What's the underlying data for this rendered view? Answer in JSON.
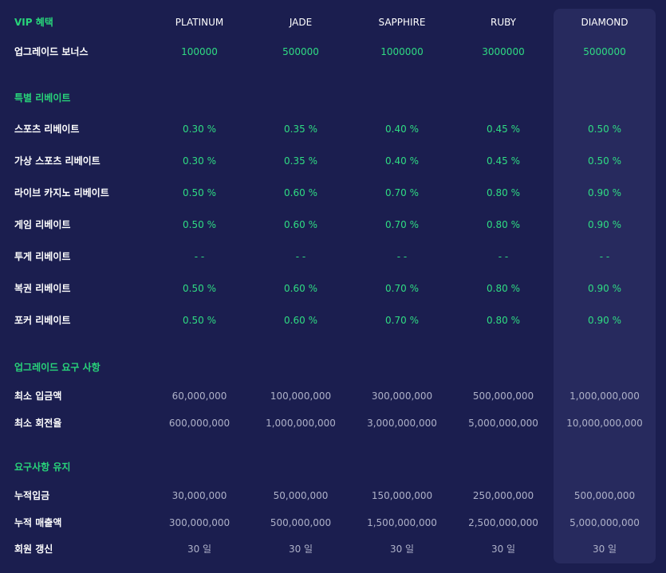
{
  "header": {
    "title": "VIP 혜택",
    "tiers": [
      "PLATINUM",
      "JADE",
      "SAPPHIRE",
      "RUBY",
      "DIAMOND"
    ]
  },
  "upgrade_bonus": {
    "label": "업그레이드 보너스",
    "values": [
      "100000",
      "500000",
      "1000000",
      "3000000",
      "5000000"
    ]
  },
  "special_rebate": {
    "title": "특별 리베이트",
    "rows": [
      {
        "label": "스포츠 리베이트",
        "values": [
          "0.30 %",
          "0.35 %",
          "0.40 %",
          "0.45 %",
          "0.50 %"
        ]
      },
      {
        "label": "가상 스포츠 리베이트",
        "values": [
          "0.30 %",
          "0.35 %",
          "0.40 %",
          "0.45 %",
          "0.50 %"
        ]
      },
      {
        "label": "라이브 카지노 리베이트",
        "values": [
          "0.50 %",
          "0.60 %",
          "0.70 %",
          "0.80 %",
          "0.90 %"
        ]
      },
      {
        "label": "게임 리베이트",
        "values": [
          "0.50 %",
          "0.60 %",
          "0.70 %",
          "0.80 %",
          "0.90 %"
        ]
      },
      {
        "label": "투게 리베이트",
        "values": [
          "- -",
          "- -",
          "- -",
          "- -",
          "- -"
        ]
      },
      {
        "label": "복권 리베이트",
        "values": [
          "0.50 %",
          "0.60 %",
          "0.70 %",
          "0.80 %",
          "0.90 %"
        ]
      },
      {
        "label": "포커 리베이트",
        "values": [
          "0.50 %",
          "0.60 %",
          "0.70 %",
          "0.80 %",
          "0.90 %"
        ]
      }
    ]
  },
  "upgrade_requirements": {
    "title": "업그레이드 요구 사항",
    "rows": [
      {
        "label": "최소 입금액",
        "values": [
          "60,000,000",
          "100,000,000",
          "300,000,000",
          "500,000,000",
          "1,000,000,000"
        ]
      },
      {
        "label": "최소 회전율",
        "values": [
          "600,000,000",
          "1,000,000,000",
          "3,000,000,000",
          "5,000,000,000",
          "10,000,000,000"
        ]
      }
    ]
  },
  "maintain_requirements": {
    "title": "요구사항 유지",
    "rows": [
      {
        "label": "누적입금",
        "values": [
          "30,000,000",
          "50,000,000",
          "150,000,000",
          "250,000,000",
          "500,000,000"
        ]
      },
      {
        "label": "누적 매출액",
        "values": [
          "300,000,000",
          "500,000,000",
          "1,500,000,000",
          "2,500,000,000",
          "5,000,000,000"
        ]
      },
      {
        "label": "회원 갱신",
        "values": [
          "30 일",
          "30 일",
          "30 일",
          "30 일",
          "30 일"
        ]
      }
    ]
  },
  "colors": {
    "background": "#1b1e4f",
    "highlight_column": "#272a5e",
    "accent_green": "#2fdc83",
    "value_grey": "#aeb1c8"
  }
}
